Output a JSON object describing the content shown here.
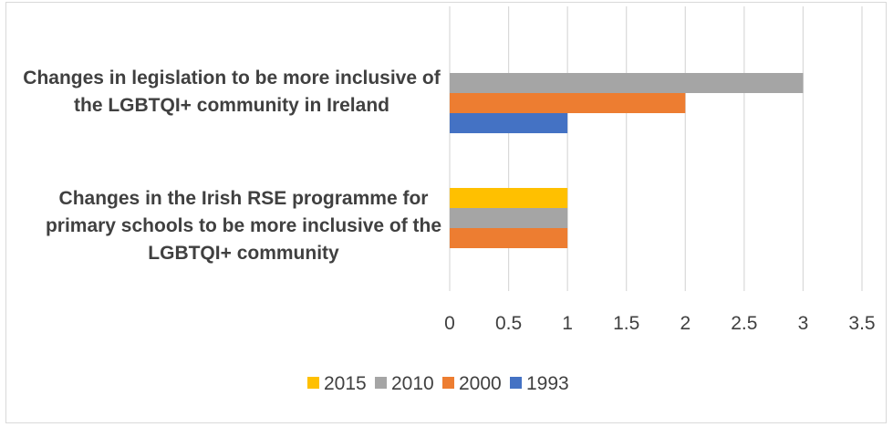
{
  "chart_data": {
    "type": "bar",
    "orientation": "horizontal",
    "title": "",
    "xlabel": "",
    "ylabel": "",
    "categories": [
      [
        "Changes in legislation to be more inclusive of",
        "the LGBTQI+ community in Ireland"
      ],
      [
        "Changes in the Irish RSE programme for",
        "primary schools to be more inclusive of the",
        "LGBTQI+ community"
      ]
    ],
    "series": [
      {
        "name": "2015",
        "color": "#FFC000",
        "values": [
          null,
          1
        ]
      },
      {
        "name": "2010",
        "color": "#A5A5A5",
        "values": [
          3,
          1
        ]
      },
      {
        "name": "2000",
        "color": "#ED7D31",
        "values": [
          2,
          1
        ]
      },
      {
        "name": "1993",
        "color": "#4472C4",
        "values": [
          1,
          null
        ]
      }
    ],
    "xlim": [
      0,
      3.5
    ],
    "xticks": [
      "0",
      "0.5",
      "1",
      "1.5",
      "2",
      "2.5",
      "3",
      "3.5"
    ],
    "grid": true,
    "legend_position": "bottom",
    "gridline_color": "#D9D9D9"
  }
}
